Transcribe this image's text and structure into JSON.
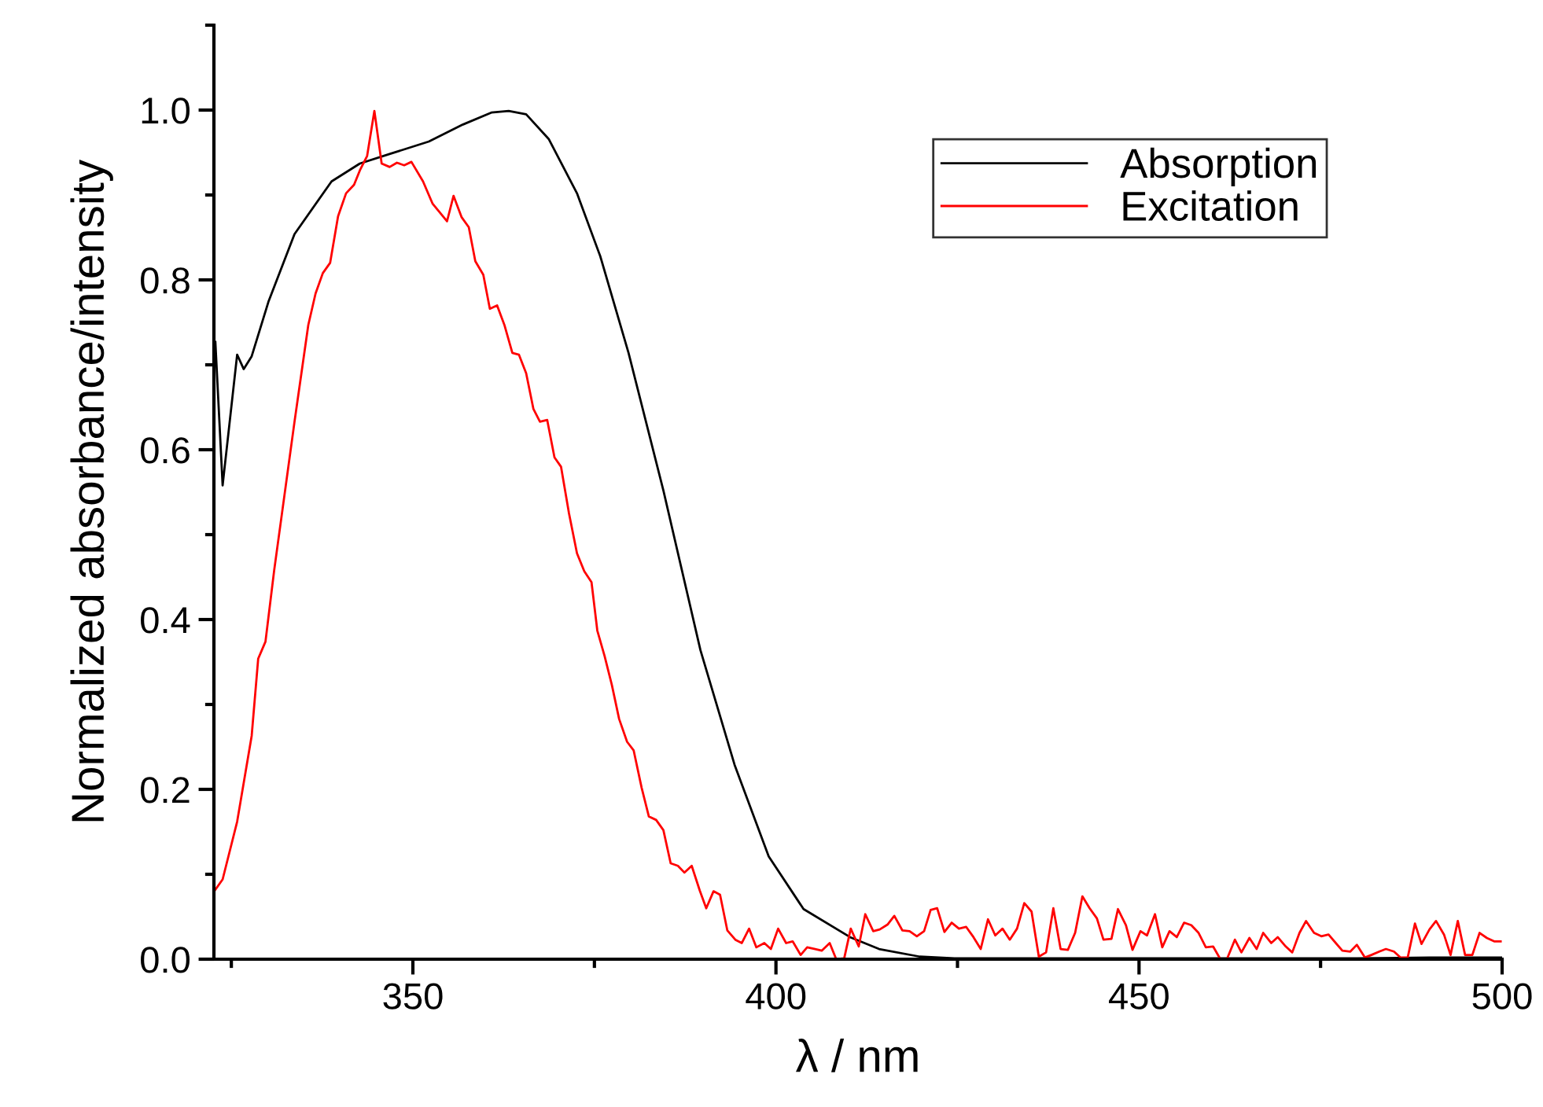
{
  "chart_data": {
    "type": "line",
    "xlabel": "λ / nm",
    "ylabel": "Normalized absorbance/intensity",
    "xlim": [
      322.6,
      500
    ],
    "ylim": [
      0.0,
      1.1
    ],
    "xticks": [
      350,
      400,
      450,
      500
    ],
    "yticks": [
      {
        "value": 0,
        "label": "0.0"
      },
      0.2,
      0.4,
      0.6,
      0.8,
      {
        "value": 1,
        "label": "1.0"
      }
    ],
    "grid": false,
    "legend": "top right",
    "marker": "none",
    "line_style": "solid",
    "series": [
      {
        "name": "Absorption",
        "color": "#000000",
        "x": [
          322.8,
          323.8,
          325.8,
          326.7,
          327.8,
          330.1,
          333.7,
          338.8,
          342.7,
          346.7,
          352.2,
          356.9,
          360.8,
          363.2,
          365.6,
          368.7,
          372.6,
          375.8,
          379.7,
          384.5,
          389.6,
          394.3,
          399.0,
          403.8,
          410.2,
          414.2,
          419.8,
          424.6,
          430,
          440,
          450,
          460,
          470,
          480,
          490,
          500
        ],
        "values": [
          0.727,
          0.558,
          0.712,
          0.695,
          0.71,
          0.774,
          0.854,
          0.916,
          0.937,
          0.948,
          0.963,
          0.983,
          0.997,
          0.999,
          0.995,
          0.966,
          0.902,
          0.828,
          0.714,
          0.552,
          0.364,
          0.229,
          0.121,
          0.059,
          0.026,
          0.012,
          0.003,
          0.001,
          0.001,
          0.001,
          0.001,
          0.001,
          0.001,
          0.001,
          0.002,
          0.002
        ]
      },
      {
        "name": "Excitation",
        "color": "#ff0000",
        "x": [
          322.8,
          323.8,
          325.8,
          327.8,
          328.7,
          329.7,
          330.9,
          333.7,
          335.6,
          336.6,
          337.6,
          338.6,
          339.7,
          340.8,
          341.9,
          342.7,
          343.7,
          344.7,
          345.7,
          346.8,
          347.8,
          348.8,
          349.8,
          351.4,
          352.7,
          354.7,
          355.6,
          356.7,
          357.7,
          358.6,
          359.7,
          360.6,
          361.6,
          362.6,
          363.7,
          364.6,
          365.6,
          366.6,
          367.5,
          368.5,
          369.5,
          370.4,
          371.5,
          372.6,
          373.6,
          374.6,
          375.4,
          376.4,
          377.4,
          378.4,
          379.5,
          380.4,
          381.5,
          382.5,
          383.5,
          384.5,
          385.5,
          386.5,
          387.4,
          388.4,
          389.5,
          390.4,
          391.4,
          392.3,
          393.3,
          394.4,
          395.3,
          396.3,
          397.3,
          398.4,
          399.3,
          400.3,
          401.4,
          402.3,
          403.4,
          404.3,
          405.4,
          406.3,
          407.4,
          408.3,
          409.4,
          410.3,
          411.4,
          412.3,
          413.4,
          414.3,
          415.4,
          416.3,
          417.4,
          418.4,
          419.4,
          420.4,
          421.3,
          422.2,
          423.2,
          424.2,
          425.2,
          426.2,
          427.2,
          428.2,
          429.2,
          430.2,
          431.2,
          432.2,
          433.2,
          434.2,
          435.2,
          436.2,
          437.2,
          438.2,
          439.2,
          440.2,
          441.2,
          442.2,
          443.2,
          444.2,
          445.1,
          446.2,
          447.1,
          448.2,
          449.1,
          450.2,
          451.1,
          452.2,
          453.2,
          454.2,
          455.2,
          456.2,
          457.2,
          458.2,
          459.2,
          460.2,
          461.2,
          462.1,
          463.2,
          464.1,
          465.2,
          466.2,
          467.1,
          468.2,
          469.1,
          470.2,
          471.1,
          472.1,
          473.0,
          474.1,
          475.1,
          476.1,
          477.1,
          478.0,
          479.1,
          480.0,
          481.1,
          482.0,
          483.1,
          484.0,
          485.1,
          486.0,
          487.0,
          488.0,
          488.9,
          490.0,
          490.9,
          492.0,
          492.9,
          493.9,
          494.9,
          495.9,
          496.9,
          497.9,
          498.9,
          499.8
        ],
        "values": [
          0.082,
          0.094,
          0.162,
          0.263,
          0.354,
          0.374,
          0.458,
          0.633,
          0.747,
          0.784,
          0.808,
          0.82,
          0.875,
          0.902,
          0.912,
          0.929,
          0.946,
          0.999,
          0.937,
          0.933,
          0.938,
          0.935,
          0.939,
          0.916,
          0.89,
          0.869,
          0.899,
          0.874,
          0.862,
          0.822,
          0.806,
          0.766,
          0.77,
          0.747,
          0.714,
          0.712,
          0.69,
          0.648,
          0.633,
          0.635,
          0.591,
          0.58,
          0.525,
          0.478,
          0.457,
          0.444,
          0.387,
          0.357,
          0.323,
          0.283,
          0.256,
          0.246,
          0.202,
          0.168,
          0.164,
          0.152,
          0.113,
          0.11,
          0.102,
          0.11,
          0.081,
          0.06,
          0.08,
          0.076,
          0.034,
          0.023,
          0.019,
          0.036,
          0.014,
          0.019,
          0.012,
          0.036,
          0.019,
          0.021,
          0.005,
          0.014,
          0.012,
          0.01,
          0.019,
          0.0,
          0.001,
          0.036,
          0.015,
          0.053,
          0.033,
          0.035,
          0.041,
          0.051,
          0.034,
          0.033,
          0.027,
          0.033,
          0.058,
          0.06,
          0.032,
          0.043,
          0.036,
          0.038,
          0.026,
          0.012,
          0.047,
          0.028,
          0.036,
          0.023,
          0.036,
          0.066,
          0.056,
          0.003,
          0.008,
          0.06,
          0.012,
          0.011,
          0.031,
          0.074,
          0.06,
          0.048,
          0.023,
          0.024,
          0.059,
          0.04,
          0.011,
          0.033,
          0.028,
          0.053,
          0.014,
          0.033,
          0.026,
          0.043,
          0.04,
          0.031,
          0.014,
          0.015,
          0.0,
          0.0,
          0.023,
          0.008,
          0.025,
          0.012,
          0.031,
          0.019,
          0.026,
          0.015,
          0.008,
          0.031,
          0.045,
          0.031,
          0.027,
          0.029,
          0.019,
          0.01,
          0.009,
          0.017,
          0.002,
          0.005,
          0.009,
          0.012,
          0.009,
          0.002,
          0.002,
          0.042,
          0.018,
          0.035,
          0.045,
          0.029,
          0.005,
          0.045,
          0.005,
          0.005,
          0.031,
          0.025,
          0.021,
          0.021
        ]
      }
    ]
  }
}
